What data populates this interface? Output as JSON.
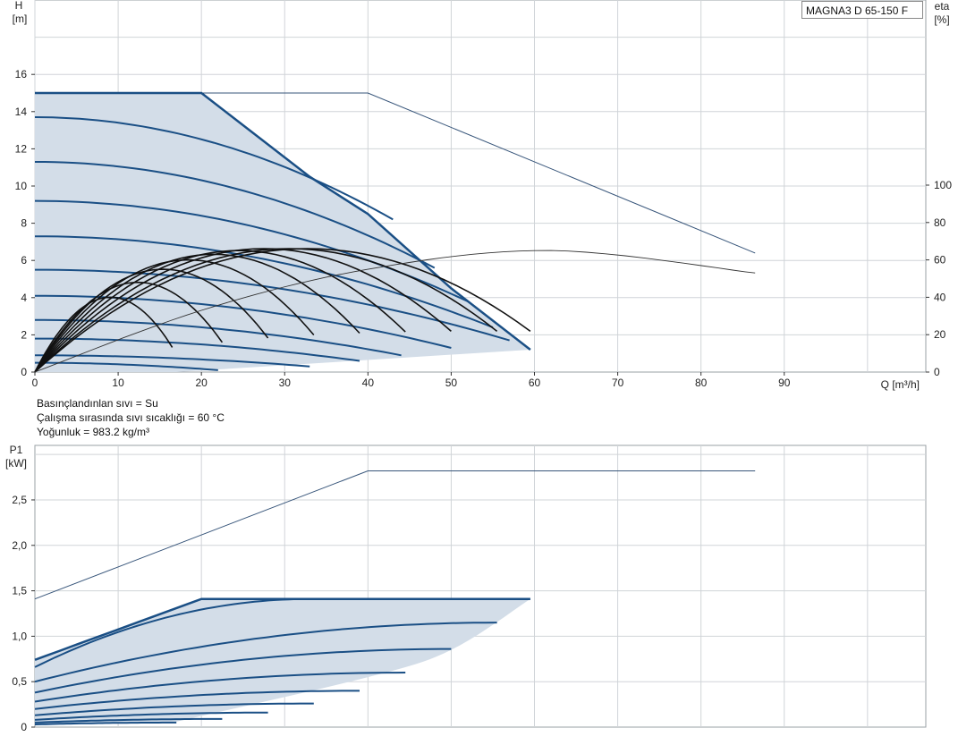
{
  "model": "MAGNA3 D 65-150 F",
  "notes": [
    "Basınçlandınlan sıvı = Su",
    "Çalışma sırasında sıvı sıcaklığı = 60 °C",
    "Yoğunluk = 983.2 kg/m³"
  ],
  "colors": {
    "curve": "#1a4f85",
    "fill": "#d3dde8",
    "eff": "#111111",
    "thin": "#37557a",
    "grid": "#d0d4d8"
  },
  "chart_data": [
    {
      "type": "line",
      "panel": "head-efficiency",
      "xlabel": "Q [m³/h]",
      "ylabel_left": [
        "H",
        "[m]"
      ],
      "ylabel_right": [
        "eta",
        "[%]"
      ],
      "xlim": [
        0,
        107
      ],
      "ylim_left": [
        0,
        20
      ],
      "ylim_right": [
        0,
        100
      ],
      "xticks": [
        0,
        10,
        20,
        30,
        40,
        50,
        60,
        70,
        80,
        90
      ],
      "yticks_left": [
        0,
        2,
        4,
        6,
        8,
        10,
        12,
        14,
        16
      ],
      "yticks_right": [
        0,
        20,
        40,
        60,
        80,
        100
      ],
      "grid": true,
      "operating_area": [
        [
          0,
          15
        ],
        [
          20,
          15
        ],
        [
          33,
          10.5
        ],
        [
          40,
          8.5
        ],
        [
          50,
          4.5
        ],
        [
          59.5,
          1.2
        ],
        [
          17,
          0
        ],
        [
          0,
          0
        ]
      ],
      "max_curve": [
        [
          0,
          15
        ],
        [
          20,
          15
        ],
        [
          33,
          10.5
        ],
        [
          40,
          8.5
        ],
        [
          50,
          4.5
        ],
        [
          59.5,
          1.2
        ]
      ],
      "single_pump_extension": [
        [
          20,
          15
        ],
        [
          40,
          15
        ],
        [
          86.5,
          6.4
        ]
      ],
      "speed_curves": [
        {
          "shutoff": 13.7,
          "end": [
            43,
            8.2
          ]
        },
        {
          "shutoff": 11.3,
          "end": [
            48,
            5.6
          ]
        },
        {
          "shutoff": 9.2,
          "end": [
            52,
            3.8
          ]
        },
        {
          "shutoff": 7.3,
          "end": [
            55,
            2.4
          ]
        },
        {
          "shutoff": 5.5,
          "end": [
            57,
            1.7
          ]
        },
        {
          "shutoff": 4.1,
          "end": [
            50,
            1.3
          ]
        },
        {
          "shutoff": 2.8,
          "end": [
            44,
            0.9
          ]
        },
        {
          "shutoff": 1.8,
          "end": [
            39,
            0.6
          ]
        },
        {
          "shutoff": 0.9,
          "end": [
            33,
            0.3
          ]
        },
        {
          "shutoff": 0.5,
          "end": [
            22,
            0.1
          ]
        }
      ],
      "efficiency_curves": [
        {
          "qmax": 16.5,
          "peak": 40
        },
        {
          "qmax": 22.5,
          "peak": 48
        },
        {
          "qmax": 28,
          "peak": 55
        },
        {
          "qmax": 33.5,
          "peak": 60
        },
        {
          "qmax": 39,
          "peak": 63
        },
        {
          "qmax": 44.5,
          "peak": 65
        },
        {
          "qmax": 50,
          "peak": 66
        },
        {
          "qmax": 55.5,
          "peak": 66
        },
        {
          "qmax": 59.5,
          "peak": 66
        }
      ],
      "efficiency_extension": [
        [
          0,
          0
        ],
        [
          20,
          33
        ],
        [
          40,
          55
        ],
        [
          62,
          65
        ],
        [
          86.5,
          53
        ]
      ]
    },
    {
      "type": "line",
      "panel": "power",
      "ylabel": [
        "P1",
        "[kW]"
      ],
      "xlim": [
        0,
        107
      ],
      "ylim": [
        0,
        3.1
      ],
      "yticks": [
        0,
        0.5,
        1.0,
        1.5,
        2.0,
        2.5
      ],
      "ytick_labels": [
        "0",
        "0,5",
        "1,0",
        "1,5",
        "2,0",
        "2,5"
      ],
      "grid": true,
      "operating_area": [
        [
          0,
          0.74
        ],
        [
          20,
          1.41
        ],
        [
          59.5,
          1.41
        ],
        [
          50,
          0.85
        ],
        [
          40,
          0.55
        ],
        [
          17,
          0.06
        ],
        [
          0,
          0.02
        ]
      ],
      "max_curve": [
        [
          0,
          0.74
        ],
        [
          20,
          1.41
        ],
        [
          59.5,
          1.41
        ]
      ],
      "single_pump_extension": [
        [
          0,
          1.41
        ],
        [
          40,
          2.82
        ],
        [
          86.5,
          2.82
        ]
      ],
      "speed_curves": [
        {
          "p0": 0.66,
          "pend": 1.41,
          "qend": 33
        },
        {
          "p0": 0.5,
          "pend": 1.15,
          "qend": 55.5
        },
        {
          "p0": 0.38,
          "pend": 0.86,
          "qend": 50
        },
        {
          "p0": 0.28,
          "pend": 0.6,
          "qend": 44.5
        },
        {
          "p0": 0.2,
          "pend": 0.4,
          "qend": 39
        },
        {
          "p0": 0.13,
          "pend": 0.26,
          "qend": 33.5
        },
        {
          "p0": 0.08,
          "pend": 0.16,
          "qend": 28
        },
        {
          "p0": 0.05,
          "pend": 0.09,
          "qend": 22.5
        },
        {
          "p0": 0.03,
          "pend": 0.05,
          "qend": 17
        }
      ]
    }
  ]
}
